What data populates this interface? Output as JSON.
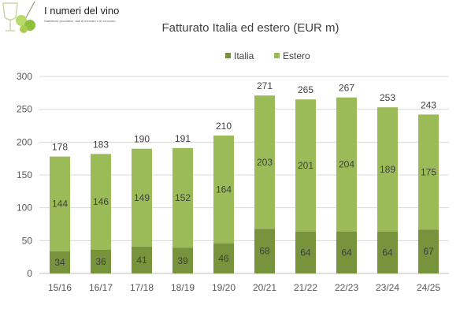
{
  "logo": {
    "title": "I numeri del vino",
    "subtitle": "Statistiche produttive, dati di mercato e di consumo",
    "colors": {
      "glass": "#c9d8a6",
      "grape_light": "#b9d96a",
      "grape_dark": "#8fbf3a"
    }
  },
  "chart_data": {
    "type": "bar",
    "stacked": true,
    "title": "Fatturato Italia ed estero (EUR m)",
    "xlabel": "",
    "ylabel": "",
    "categories": [
      "15/16",
      "16/17",
      "17/18",
      "18/19",
      "19/20",
      "20/21",
      "21/22",
      "22/23",
      "23/24",
      "24/25"
    ],
    "series": [
      {
        "name": "Italia",
        "color": "#77933c",
        "values": [
          34,
          36,
          41,
          39,
          46,
          68,
          64,
          64,
          64,
          67
        ]
      },
      {
        "name": "Estero",
        "color": "#9bbb59",
        "values": [
          144,
          146,
          149,
          152,
          164,
          203,
          201,
          204,
          189,
          175
        ]
      }
    ],
    "totals": [
      178,
      183,
      190,
      191,
      210,
      271,
      265,
      267,
      253,
      243
    ],
    "ylim": [
      0,
      300
    ],
    "yticks": [
      0,
      50,
      100,
      150,
      200,
      250,
      300
    ],
    "grid": true,
    "legend": "top-center"
  }
}
